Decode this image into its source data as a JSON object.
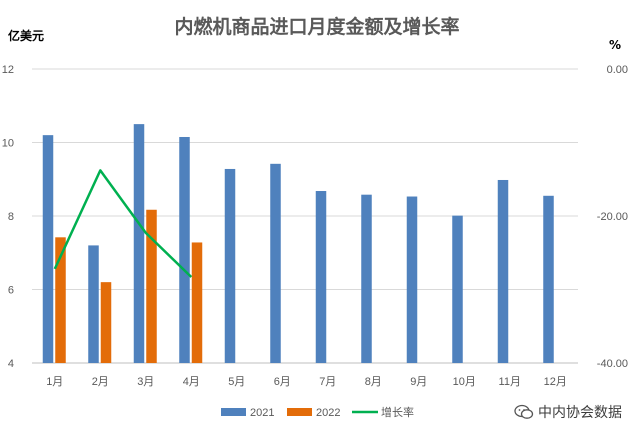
{
  "chart_data": {
    "type": "bar",
    "title": "内燃机商品进口月度金额及增长率",
    "ylabel_left": "亿美元",
    "ylabel_right": "%",
    "categories": [
      "1月",
      "2月",
      "3月",
      "4月",
      "5月",
      "6月",
      "7月",
      "8月",
      "9月",
      "10月",
      "11月",
      "12月"
    ],
    "series": [
      {
        "name": "2021",
        "kind": "bar",
        "axis": "left",
        "color": "#4f81bd",
        "values": [
          10.2,
          7.2,
          10.5,
          10.15,
          9.28,
          9.42,
          8.68,
          8.58,
          8.53,
          8.01,
          8.98,
          8.55
        ]
      },
      {
        "name": "2022",
        "kind": "bar",
        "axis": "left",
        "color": "#e36c09",
        "values": [
          7.42,
          6.2,
          8.17,
          7.28,
          null,
          null,
          null,
          null,
          null,
          null,
          null,
          null
        ]
      },
      {
        "name": "增长率",
        "kind": "line",
        "axis": "right",
        "color": "#00b050",
        "values": [
          -27.2,
          -13.8,
          -22.3,
          -28.3,
          null,
          null,
          null,
          null,
          null,
          null,
          null,
          null
        ]
      }
    ],
    "y_left": {
      "min": 4,
      "max": 12,
      "ticks": [
        "4",
        "6",
        "8",
        "10",
        "12"
      ]
    },
    "y_right": {
      "min": -40,
      "max": 0,
      "ticks": [
        "0.00",
        "-20.00",
        "-40.00"
      ]
    },
    "grid": true,
    "legend_position": "bottom"
  },
  "watermark": {
    "text": "中内协会数据",
    "icon": "wechat-icon"
  }
}
